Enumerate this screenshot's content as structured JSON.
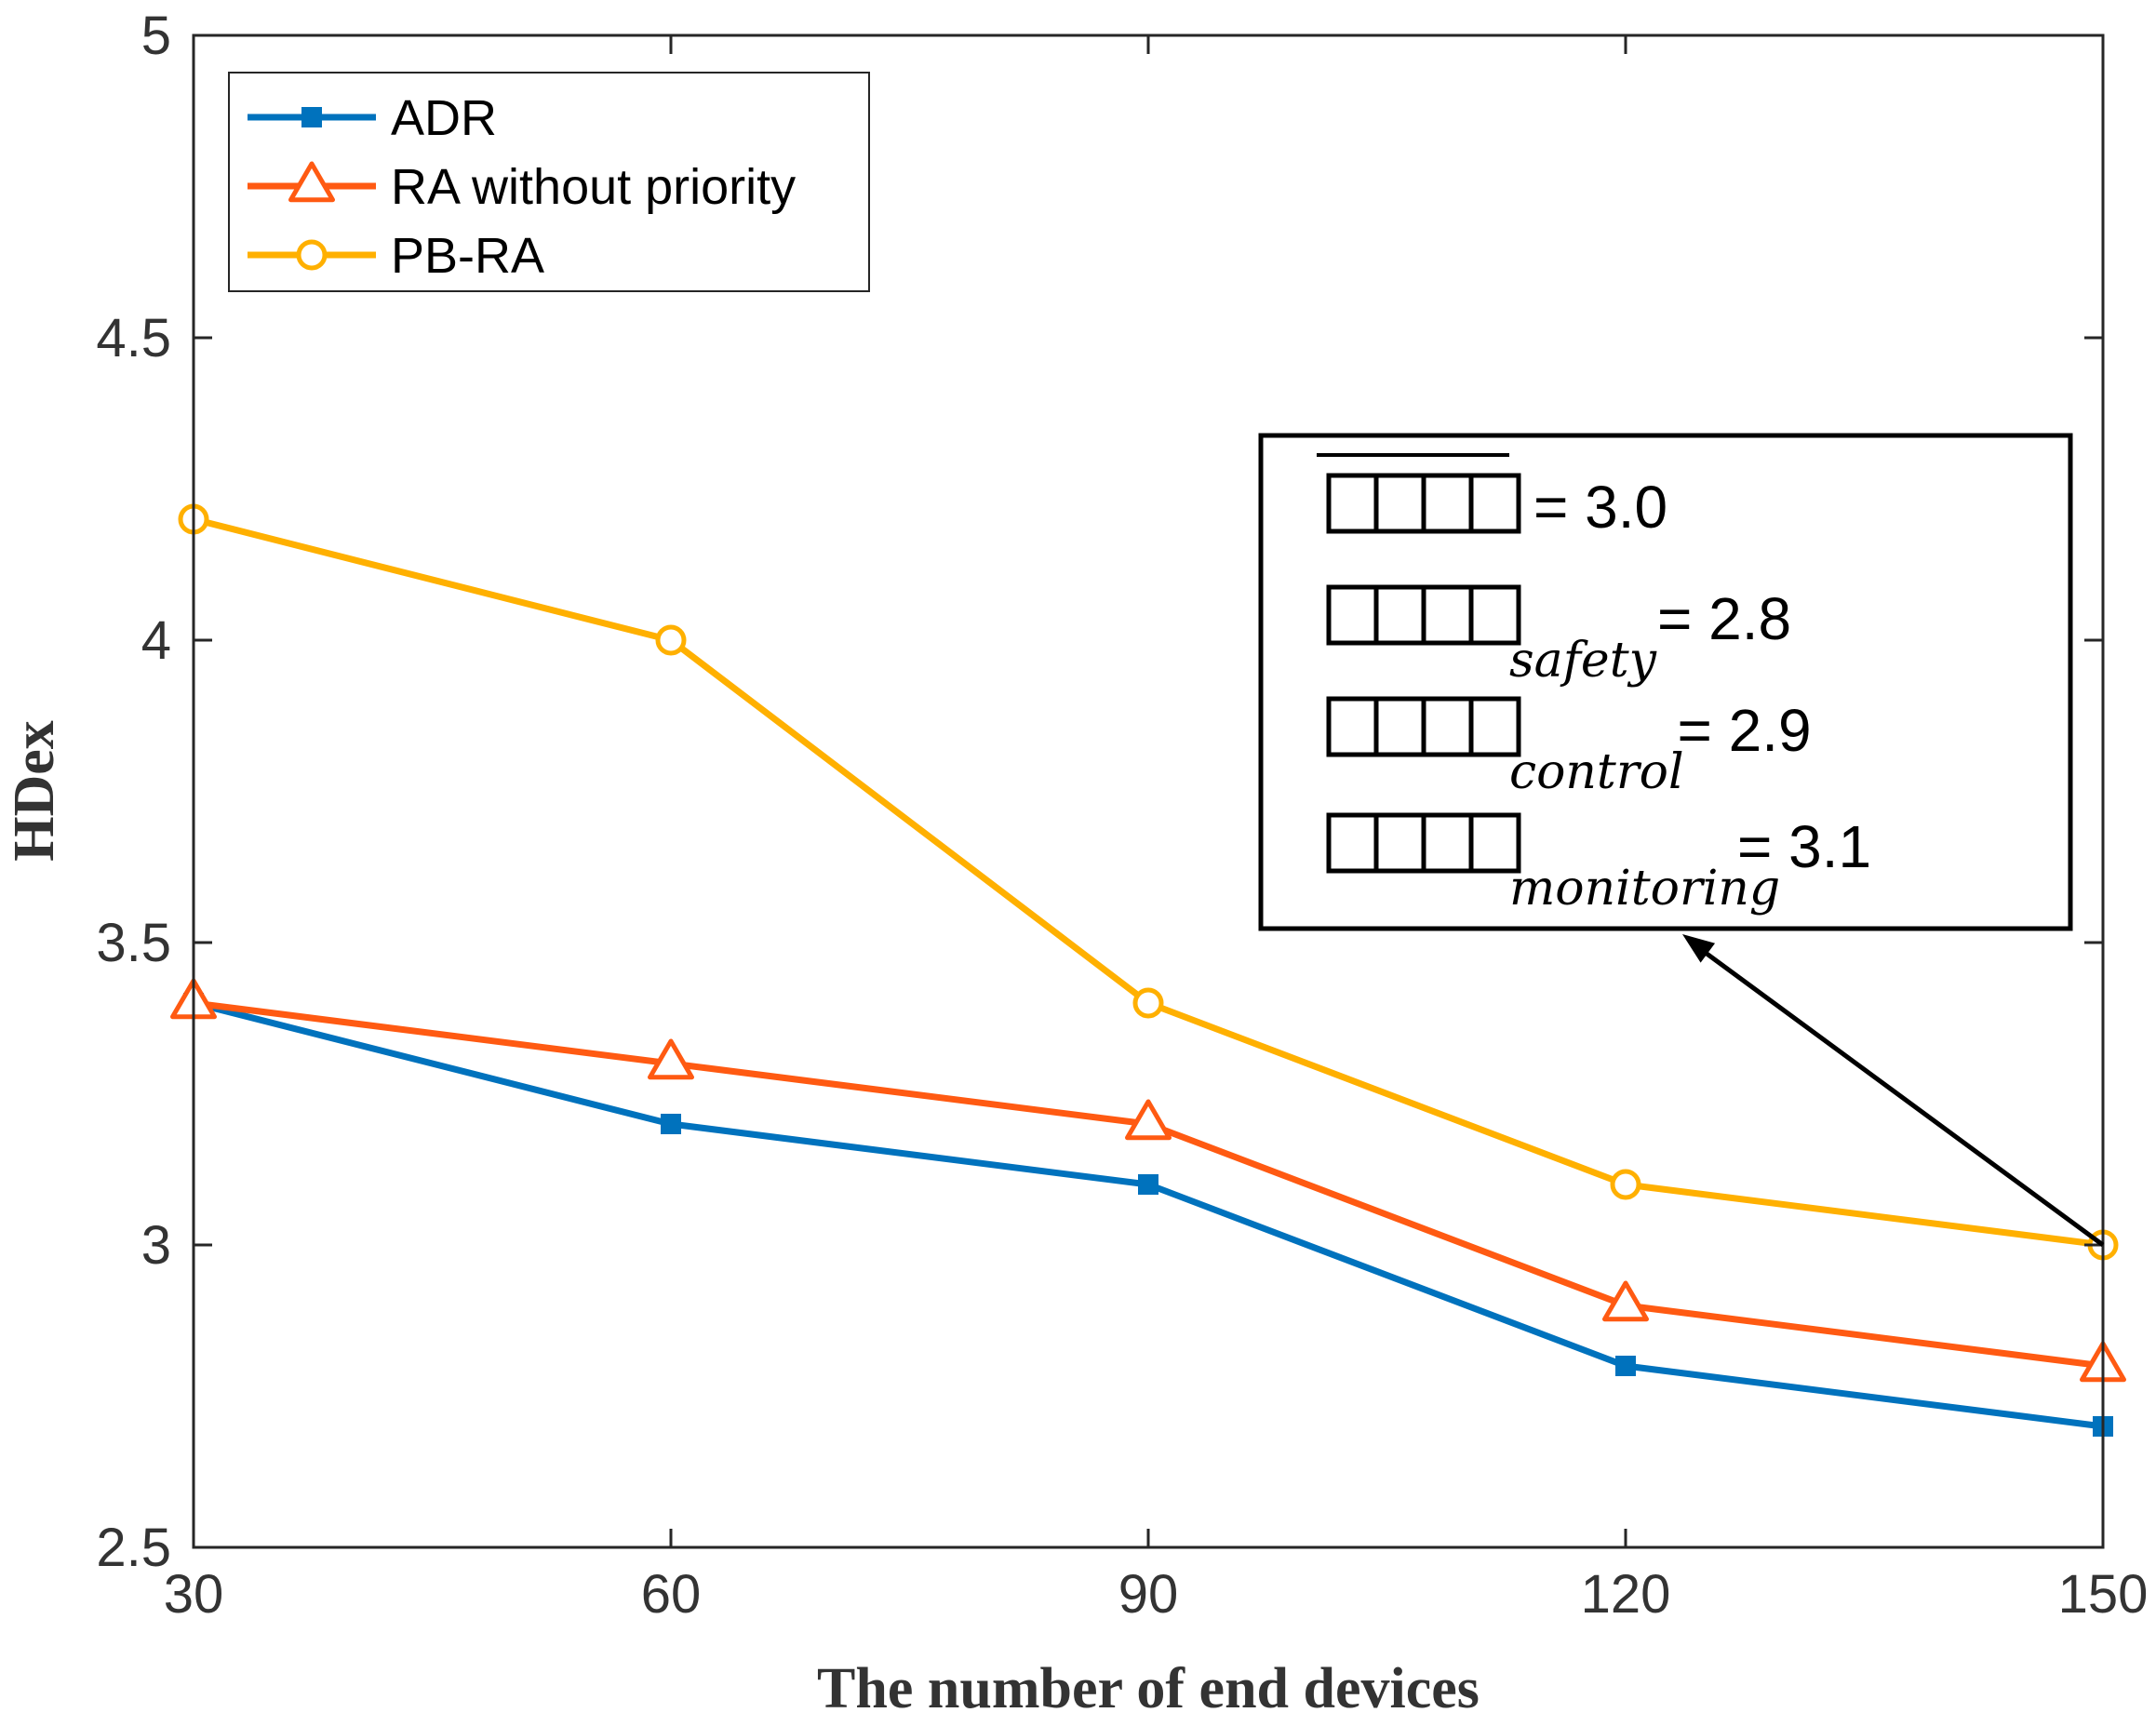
{
  "chart_data": {
    "type": "line",
    "xlabel": "The number of end devices",
    "ylabel": "HDex",
    "x": [
      30,
      60,
      90,
      120,
      150
    ],
    "xticks": [
      "30",
      "60",
      "90",
      "120",
      "150"
    ],
    "xlim": [
      30,
      150
    ],
    "ylim": [
      2.5,
      5
    ],
    "yticks": [
      "2.5",
      "3",
      "3.5",
      "4",
      "4.5",
      "5"
    ],
    "ytick_values": [
      2.5,
      3,
      3.5,
      4,
      4.5,
      5
    ],
    "grid": false,
    "legend_position": "top-left",
    "series": [
      {
        "name": "ADR",
        "color": "#0072BD",
        "marker": "square",
        "values": [
          3.4,
          3.2,
          3.1,
          2.8,
          2.7
        ]
      },
      {
        "name": "RA without priority",
        "color": "#FF5A12",
        "marker": "triangle",
        "values": [
          3.4,
          3.3,
          3.2,
          2.9,
          2.8
        ]
      },
      {
        "name": "PB-RA",
        "color": "#FFB000",
        "marker": "circle",
        "values": [
          4.2,
          4.0,
          3.4,
          3.1,
          3.0
        ]
      }
    ],
    "annotation": {
      "points_to": {
        "x": 150,
        "y": 3.0
      },
      "lines": [
        {
          "subscript": "",
          "value": "=  3.0",
          "overline": true
        },
        {
          "subscript": "safety",
          "value": "=  2.8",
          "overline": false
        },
        {
          "subscript": "control",
          "value": "=  2.9",
          "overline": false
        },
        {
          "subscript": "monitoring",
          "value": "=  3.1",
          "overline": false
        }
      ]
    }
  }
}
